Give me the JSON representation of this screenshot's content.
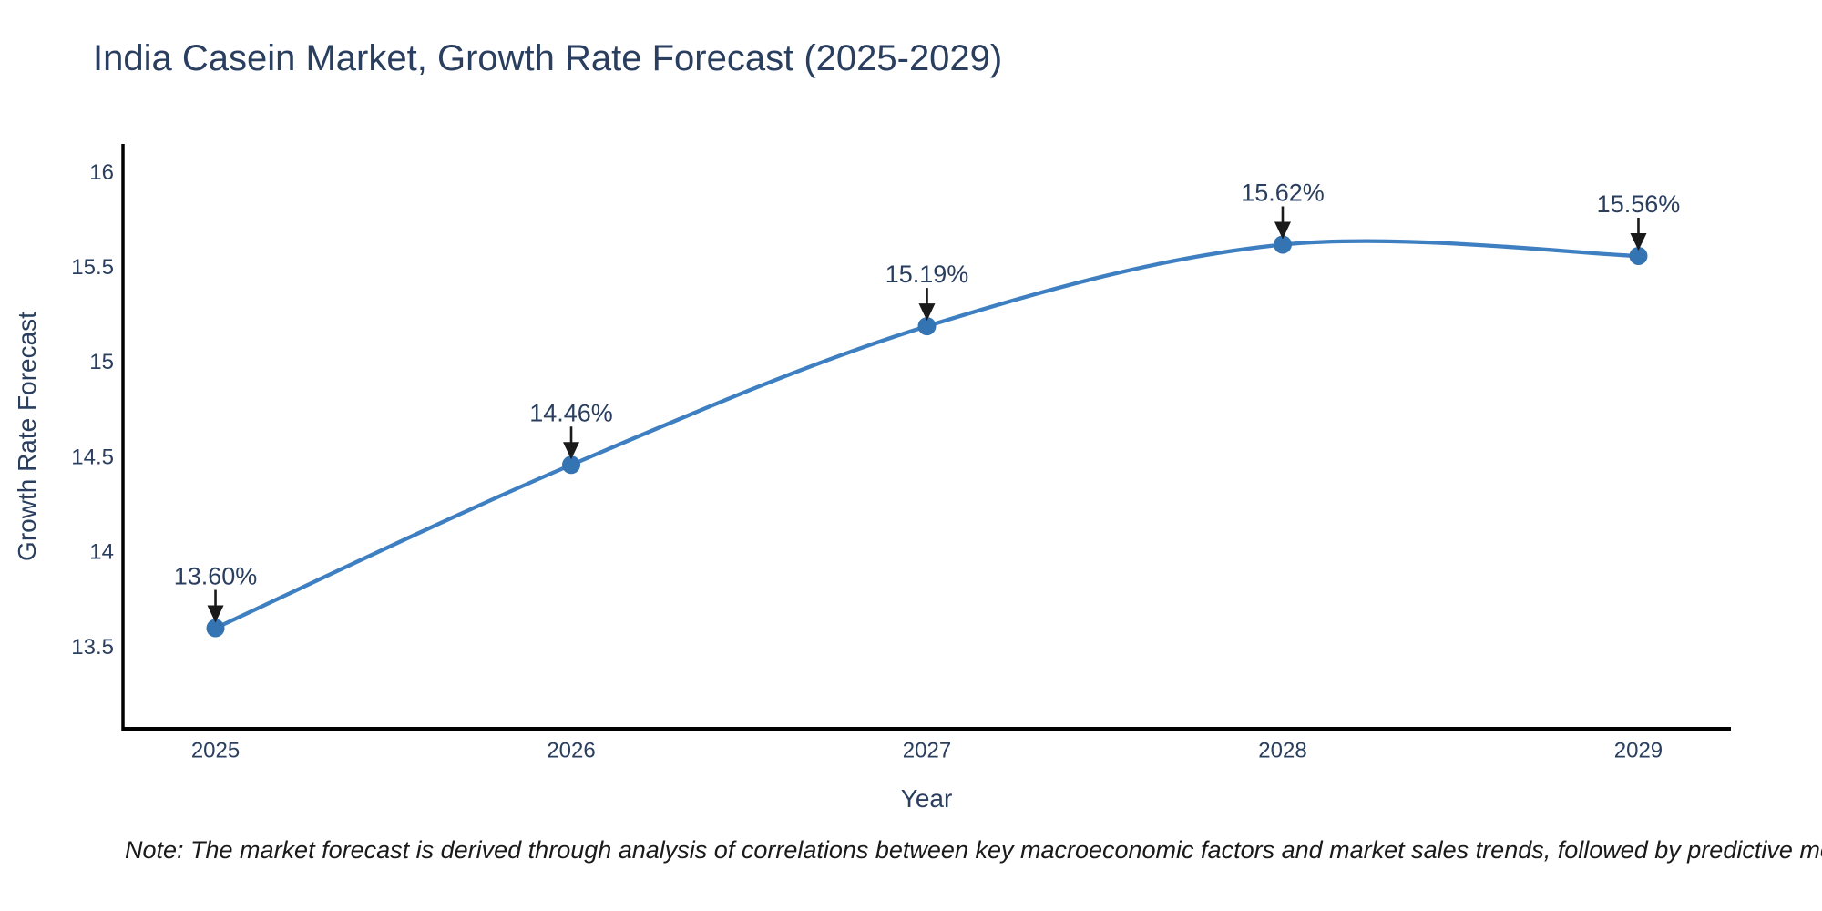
{
  "note": {
    "text": "Note: The market forecast is derived through analysis of correlations between key macroeconomic factors and market sales trends, followed by predictive modeling to project future sal"
  },
  "chart_data": {
    "type": "line",
    "title": "India Casein Market, Growth Rate Forecast (2025-2029)",
    "xlabel": "Year",
    "ylabel": "Growth Rate Forecast",
    "x": [
      2025,
      2026,
      2027,
      2028,
      2029
    ],
    "x_tick_labels": [
      "2025",
      "2026",
      "2027",
      "2028",
      "2029"
    ],
    "values": [
      13.6,
      14.46,
      15.19,
      15.62,
      15.56
    ],
    "point_labels": [
      "13.60%",
      "14.46%",
      "15.19%",
      "15.62%",
      "15.56%"
    ],
    "y_ticks": [
      13.5,
      14,
      14.5,
      15,
      15.5,
      16
    ],
    "y_tick_labels": [
      "13.5",
      "14",
      "14.5",
      "15",
      "15.5",
      "16"
    ],
    "xlim": [
      2024.74,
      2029.26
    ],
    "ylim": [
      13.07,
      16.15
    ],
    "curve": "spline",
    "grid": false,
    "legend": "none",
    "colors": {
      "line": "#3d7fc1",
      "marker": "#3474b2",
      "axis_line": "#000000",
      "tick_label": "#2a3f5f",
      "annotation_text": "#2a3f5f",
      "annotation_arrow": "#1a1a1a",
      "title": "#2a3f5f"
    }
  }
}
